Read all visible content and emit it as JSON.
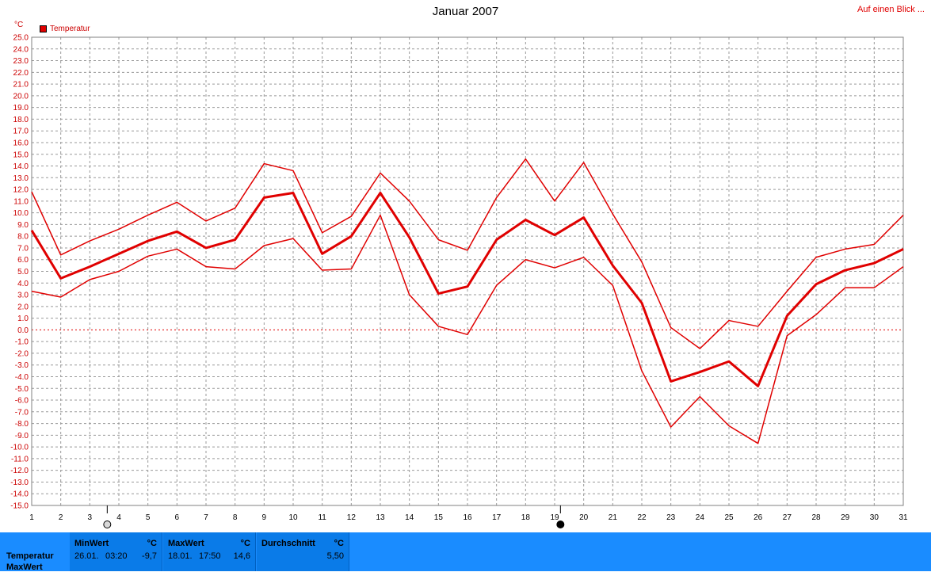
{
  "header": {
    "title": "Januar 2007",
    "top_link": "Auf einen Blick ..."
  },
  "colors": {
    "series": "#e00000",
    "axis_text": "#cc0000",
    "grid": "#999999",
    "footer_bg": "#1a8cff"
  },
  "chart_data": {
    "type": "line",
    "title": "Januar 2007",
    "ylabel": "°C",
    "ylim": [
      -15,
      25
    ],
    "ytick_step": 1,
    "grid": true,
    "legend": {
      "position": "top-left",
      "entries": [
        "Temperatur"
      ]
    },
    "x": [
      1,
      2,
      3,
      4,
      5,
      6,
      7,
      8,
      9,
      10,
      11,
      12,
      13,
      14,
      15,
      16,
      17,
      18,
      19,
      20,
      21,
      22,
      23,
      24,
      25,
      26,
      27,
      28,
      29,
      30,
      31
    ],
    "series": [
      {
        "name": "Temperatur",
        "role": "max",
        "values": [
          11.8,
          6.4,
          7.6,
          8.6,
          9.8,
          10.9,
          9.3,
          10.4,
          14.2,
          13.6,
          8.3,
          9.7,
          13.4,
          11.0,
          7.7,
          6.8,
          11.3,
          14.6,
          11.0,
          14.3,
          9.9,
          5.8,
          0.2,
          -1.6,
          0.8,
          0.3,
          3.3,
          6.2,
          6.9,
          7.3,
          9.8
        ]
      },
      {
        "name": "Temperatur",
        "role": "avg",
        "values": [
          8.5,
          4.4,
          5.4,
          6.5,
          7.6,
          8.4,
          7.0,
          7.7,
          11.3,
          11.7,
          6.5,
          8.0,
          11.7,
          7.9,
          3.1,
          3.7,
          7.7,
          9.4,
          8.1,
          9.6,
          5.5,
          2.3,
          -4.4,
          -3.6,
          -2.7,
          -4.8,
          1.2,
          3.9,
          5.1,
          5.7,
          6.9
        ]
      },
      {
        "name": "Temperatur",
        "role": "min",
        "values": [
          3.3,
          2.8,
          4.3,
          5.0,
          6.3,
          6.9,
          5.4,
          5.2,
          7.2,
          7.8,
          5.1,
          5.2,
          9.8,
          3.0,
          0.3,
          -0.4,
          3.8,
          6.0,
          5.3,
          6.2,
          3.8,
          -3.5,
          -8.3,
          -5.7,
          -8.2,
          -9.7,
          -0.5,
          1.3,
          3.6,
          3.6,
          5.4
        ]
      }
    ],
    "moon_phases": [
      {
        "day": 3.6,
        "phase": "full"
      },
      {
        "day": 19.2,
        "phase": "new"
      }
    ]
  },
  "footer": {
    "row_labels": [
      "Temperatur",
      "MaxWert"
    ],
    "panels": [
      {
        "header": "MinWert",
        "unit": "°C",
        "date": "26.01.",
        "time": "03:20",
        "value": "-9,7"
      },
      {
        "header": "MaxWert",
        "unit": "°C",
        "date": "18.01.",
        "time": "17:50",
        "value": "14,6"
      },
      {
        "header": "Durchschnitt",
        "unit": "°C",
        "value": "5,50"
      }
    ]
  }
}
